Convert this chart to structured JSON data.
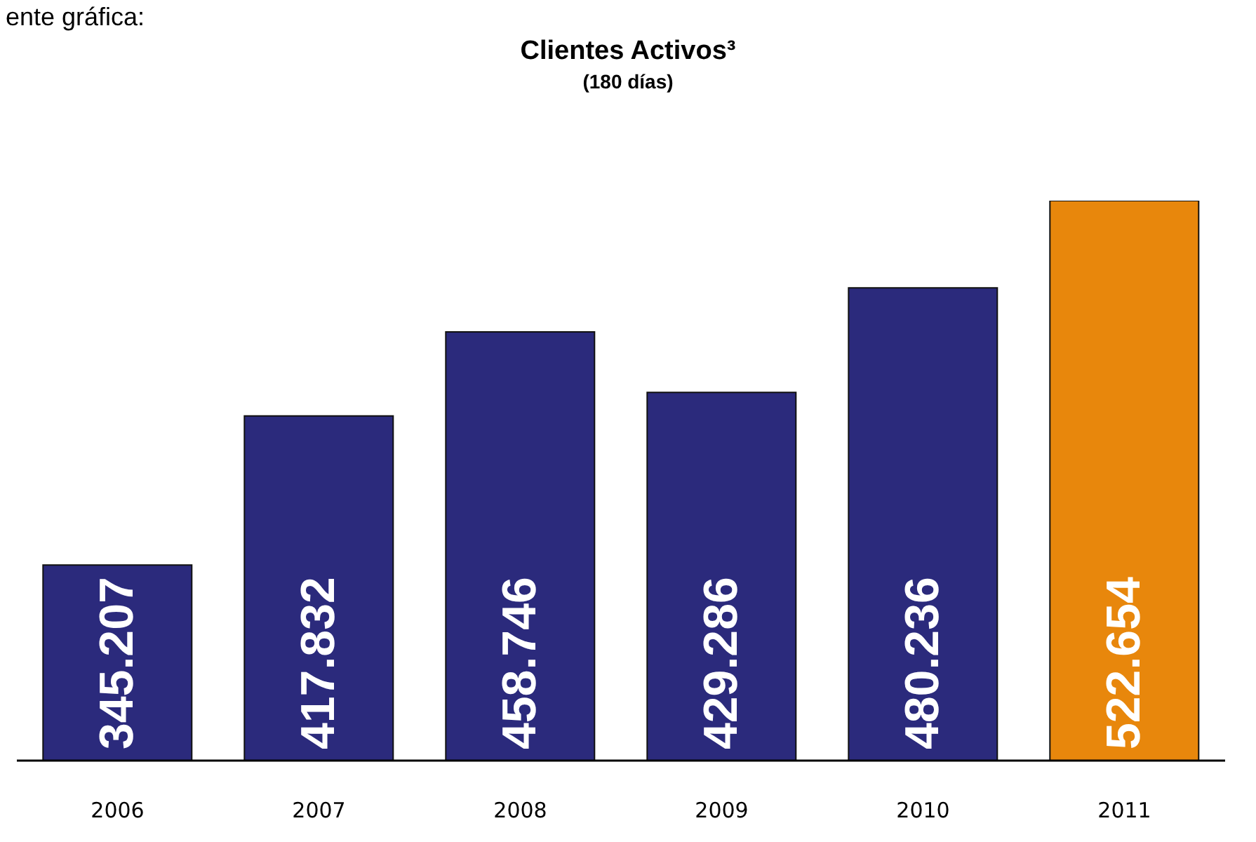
{
  "chart_data": {
    "type": "bar",
    "title": "Clientes Activos³",
    "subtitle": "(180 días)",
    "annotations": [
      "ente gráfica:"
    ],
    "categories": [
      "2006",
      "2007",
      "2008",
      "2009",
      "2010",
      "2011"
    ],
    "values": [
      345.207,
      417.832,
      458.746,
      429.286,
      480.236,
      522.654
    ],
    "colors": [
      "#2b2a7c",
      "#2b2a7c",
      "#2b2a7c",
      "#2b2a7c",
      "#2b2a7c",
      "#e8870c"
    ],
    "ylim": [
      250,
      522.654
    ],
    "data_labels": true,
    "tick_labels": "x",
    "grid": false,
    "legend": false
  }
}
